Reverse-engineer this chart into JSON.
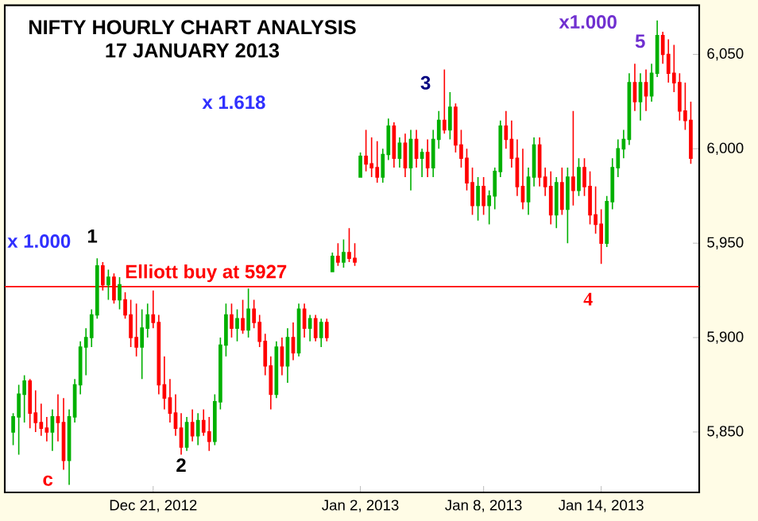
{
  "chart_data": {
    "type": "candlestick",
    "title": "NIFTY HOURLY CHART ANALYSIS",
    "subtitle": "17 JANUARY 2013",
    "categories": [
      null,
      null,
      null,
      null,
      null,
      null,
      null,
      null,
      null,
      null,
      null,
      null,
      null,
      null,
      null,
      null,
      null,
      null,
      null,
      null,
      null,
      null,
      null,
      null,
      null,
      "Dec 21, 2012",
      null,
      null,
      null,
      null,
      null,
      null,
      null,
      null,
      null,
      null,
      null,
      null,
      null,
      null,
      null,
      null,
      null,
      null,
      null,
      null,
      null,
      null,
      null,
      null,
      null,
      null,
      null,
      null,
      null,
      null,
      null,
      null,
      null,
      null,
      null,
      null,
      "Jan 2, 2013",
      null,
      null,
      null,
      null,
      null,
      null,
      null,
      null,
      null,
      null,
      null,
      null,
      null,
      null,
      null,
      null,
      null,
      null,
      null,
      null,
      null,
      "Jan 8, 2013",
      null,
      null,
      null,
      null,
      null,
      null,
      null,
      null,
      null,
      null,
      null,
      null,
      null,
      null,
      null,
      null,
      null,
      null,
      null,
      null,
      "Jan 14, 2013",
      null,
      null,
      null,
      null,
      null,
      null,
      null,
      null,
      null,
      null,
      null,
      null,
      null,
      null,
      null,
      null
    ],
    "ohlc": [
      [
        5850,
        5860,
        5843,
        5858
      ],
      [
        5858,
        5875,
        5838,
        5870
      ],
      [
        5870,
        5880,
        5855,
        5877
      ],
      [
        5877,
        5878,
        5852,
        5860
      ],
      [
        5860,
        5872,
        5850,
        5855
      ],
      [
        5855,
        5865,
        5848,
        5852
      ],
      [
        5852,
        5858,
        5845,
        5850
      ],
      [
        5850,
        5862,
        5840,
        5858
      ],
      [
        5858,
        5870,
        5845,
        5855
      ],
      [
        5855,
        5868,
        5830,
        5835
      ],
      [
        5835,
        5862,
        5822,
        5858
      ],
      [
        5858,
        5878,
        5855,
        5875
      ],
      [
        5875,
        5898,
        5870,
        5895
      ],
      [
        5895,
        5905,
        5880,
        5900
      ],
      [
        5900,
        5915,
        5895,
        5912
      ],
      [
        5912,
        5942,
        5910,
        5938
      ],
      [
        5938,
        5940,
        5925,
        5928
      ],
      [
        5928,
        5936,
        5920,
        5932
      ],
      [
        5932,
        5934,
        5918,
        5920
      ],
      [
        5920,
        5932,
        5915,
        5928
      ],
      [
        5920,
        5924,
        5910,
        5912
      ],
      [
        5912,
        5920,
        5895,
        5900
      ],
      [
        5900,
        5918,
        5890,
        5895
      ],
      [
        5895,
        5915,
        5878,
        5905
      ],
      [
        5905,
        5918,
        5900,
        5912
      ],
      [
        5912,
        5925,
        5905,
        5908
      ],
      [
        5908,
        5912,
        5870,
        5875
      ],
      [
        5875,
        5890,
        5862,
        5868
      ],
      [
        5868,
        5878,
        5855,
        5860
      ],
      [
        5860,
        5870,
        5848,
        5852
      ],
      [
        5852,
        5860,
        5838,
        5842
      ],
      [
        5842,
        5858,
        5840,
        5855
      ],
      [
        5855,
        5862,
        5845,
        5848
      ],
      [
        5848,
        5860,
        5843,
        5856
      ],
      [
        5856,
        5862,
        5848,
        5850
      ],
      [
        5850,
        5858,
        5840,
        5845
      ],
      [
        5845,
        5870,
        5843,
        5866
      ],
      [
        5866,
        5900,
        5862,
        5896
      ],
      [
        5896,
        5918,
        5890,
        5912
      ],
      [
        5912,
        5918,
        5900,
        5905
      ],
      [
        5905,
        5915,
        5898,
        5910
      ],
      [
        5910,
        5920,
        5902,
        5904
      ],
      [
        5904,
        5926,
        5900,
        5915
      ],
      [
        5915,
        5920,
        5905,
        5908
      ],
      [
        5908,
        5912,
        5895,
        5898
      ],
      [
        5898,
        5902,
        5880,
        5885
      ],
      [
        5885,
        5890,
        5862,
        5870
      ],
      [
        5870,
        5898,
        5868,
        5895
      ],
      [
        5895,
        5900,
        5880,
        5885
      ],
      [
        5885,
        5905,
        5876,
        5900
      ],
      [
        5900,
        5908,
        5888,
        5892
      ],
      [
        5892,
        5918,
        5890,
        5915
      ],
      [
        5915,
        5918,
        5900,
        5905
      ],
      [
        5905,
        5912,
        5898,
        5910
      ],
      [
        5910,
        5912,
        5898,
        5900
      ],
      [
        5900,
        5910,
        5895,
        5908
      ],
      [
        5908,
        5910,
        5898,
        5900
      ],
      [
        5935,
        5945,
        5935,
        5943
      ],
      [
        5943,
        5950,
        5938,
        5940
      ],
      [
        5940,
        5952,
        5937,
        5945
      ],
      [
        5945,
        5958,
        5940,
        5942
      ],
      [
        5942,
        5950,
        5938,
        5940
      ],
      [
        5985,
        5998,
        5985,
        5996
      ],
      [
        5996,
        6010,
        5988,
        5992
      ],
      [
        5992,
        6006,
        5985,
        5990
      ],
      [
        5990,
        6004,
        5982,
        5985
      ],
      [
        5985,
        6000,
        5982,
        5997
      ],
      [
        5997,
        6016,
        5994,
        6012
      ],
      [
        6012,
        6014,
        5990,
        5995
      ],
      [
        5995,
        6006,
        5990,
        6003
      ],
      [
        6003,
        6008,
        5985,
        5990
      ],
      [
        5990,
        6010,
        5978,
        6005
      ],
      [
        6005,
        6010,
        5990,
        5995
      ],
      [
        5995,
        6000,
        5985,
        5998
      ],
      [
        5998,
        6005,
        5985,
        5990
      ],
      [
        5990,
        6010,
        5985,
        6005
      ],
      [
        6005,
        6020,
        6000,
        6015
      ],
      [
        6015,
        6042,
        6008,
        6010
      ],
      [
        6010,
        6030,
        6005,
        6022
      ],
      [
        6022,
        6024,
        5998,
        6002
      ],
      [
        6002,
        6010,
        5990,
        5995
      ],
      [
        5995,
        6000,
        5978,
        5982
      ],
      [
        5982,
        5990,
        5965,
        5970
      ],
      [
        5970,
        5985,
        5962,
        5980
      ],
      [
        5980,
        5985,
        5965,
        5970
      ],
      [
        5970,
        5978,
        5960,
        5975
      ],
      [
        5975,
        5990,
        5968,
        5988
      ],
      [
        5988,
        6015,
        5985,
        6012
      ],
      [
        6012,
        6020,
        6000,
        6005
      ],
      [
        6005,
        6015,
        5990,
        5995
      ],
      [
        5995,
        6005,
        5975,
        5980
      ],
      [
        5980,
        6000,
        5968,
        5972
      ],
      [
        5972,
        5990,
        5965,
        5985
      ],
      [
        5985,
        6006,
        5980,
        6002
      ],
      [
        6002,
        6006,
        5980,
        5985
      ],
      [
        5985,
        5990,
        5975,
        5980
      ],
      [
        5980,
        5988,
        5960,
        5965
      ],
      [
        5965,
        5985,
        5958,
        5982
      ],
      [
        5982,
        5990,
        5965,
        5968
      ],
      [
        5968,
        5990,
        5950,
        5985
      ],
      [
        5985,
        6020,
        5970,
        5978
      ],
      [
        5978,
        5995,
        5975,
        5990
      ],
      [
        5990,
        5995,
        5975,
        5980
      ],
      [
        5980,
        5988,
        5960,
        5965
      ],
      [
        5965,
        5980,
        5955,
        5960
      ],
      [
        5960,
        5968,
        5939,
        5950
      ],
      [
        5950,
        5975,
        5948,
        5972
      ],
      [
        5972,
        5995,
        5968,
        5990
      ],
      [
        5990,
        6005,
        5985,
        6000
      ],
      [
        6000,
        6010,
        5995,
        6005
      ],
      [
        6005,
        6040,
        6002,
        6035
      ],
      [
        6035,
        6045,
        6020,
        6025
      ],
      [
        6025,
        6040,
        6015,
        6035
      ],
      [
        6035,
        6042,
        6020,
        6028
      ],
      [
        6028,
        6045,
        6025,
        6040
      ],
      [
        6040,
        6068,
        6038,
        6060
      ],
      [
        6060,
        6062,
        6045,
        6050
      ],
      [
        6050,
        6058,
        6035,
        6040
      ],
      [
        6040,
        6055,
        6030,
        6035
      ],
      [
        6035,
        6040,
        6015,
        6020
      ],
      [
        6020,
        6035,
        6010,
        6015
      ],
      [
        6015,
        6025,
        5992,
        5995
      ]
    ],
    "colors": [
      "#00b000",
      "#00b000",
      "#00b000",
      "#ff0000",
      "#ff0000",
      "#ff0000",
      "#ff0000",
      "#00b000",
      "#ff0000",
      "#ff0000",
      "#00b000",
      "#00b000",
      "#00b000",
      "#00b000",
      "#00b000",
      "#00b000",
      "#ff0000",
      "#00b000",
      "#ff0000",
      "#00b000",
      "#ff0000",
      "#ff0000",
      "#ff0000",
      "#00b000",
      "#00b000",
      "#ff0000",
      "#ff0000",
      "#ff0000",
      "#ff0000",
      "#ff0000",
      "#ff0000",
      "#00b000",
      "#ff0000",
      "#00b000",
      "#ff0000",
      "#ff0000",
      "#00b000",
      "#00b000",
      "#00b000",
      "#ff0000",
      "#00b000",
      "#ff0000",
      "#00b000",
      "#ff0000",
      "#ff0000",
      "#ff0000",
      "#ff0000",
      "#00b000",
      "#ff0000",
      "#00b000",
      "#ff0000",
      "#00b000",
      "#ff0000",
      "#00b000",
      "#ff0000",
      "#00b000",
      "#ff0000",
      "#00b000",
      "#ff0000",
      "#00b000",
      "#ff0000",
      "#ff0000",
      "#00b000",
      "#ff0000",
      "#ff0000",
      "#ff0000",
      "#00b000",
      "#00b000",
      "#ff0000",
      "#00b000",
      "#ff0000",
      "#00b000",
      "#ff0000",
      "#00b000",
      "#ff0000",
      "#00b000",
      "#00b000",
      "#ff0000",
      "#00b000",
      "#ff0000",
      "#ff0000",
      "#ff0000",
      "#ff0000",
      "#00b000",
      "#ff0000",
      "#00b000",
      "#00b000",
      "#00b000",
      "#ff0000",
      "#ff0000",
      "#ff0000",
      "#ff0000",
      "#00b000",
      "#00b000",
      "#ff0000",
      "#ff0000",
      "#ff0000",
      "#00b000",
      "#ff0000",
      "#00b000",
      "#ff0000",
      "#00b000",
      "#ff0000",
      "#ff0000",
      "#ff0000",
      "#ff0000",
      "#00b000",
      "#00b000",
      "#00b000",
      "#00b000",
      "#00b000",
      "#ff0000",
      "#00b000",
      "#ff0000",
      "#00b000",
      "#00b000",
      "#ff0000",
      "#ff0000",
      "#ff0000",
      "#ff0000",
      "#ff0000",
      "#ff0000"
    ],
    "ylim": [
      5818,
      6076
    ],
    "yticks": [
      {
        "value": 5850,
        "label": "5,850"
      },
      {
        "value": 5900,
        "label": "5,900"
      },
      {
        "value": 5950,
        "label": "5,950"
      },
      {
        "value": 6000,
        "label": "6,000"
      },
      {
        "value": 6050,
        "label": "6,050"
      }
    ],
    "ref_lines": [
      {
        "axis": "y",
        "value": 5927,
        "label": "Elliott buy at 5927",
        "color": "#ff0000"
      }
    ],
    "annotations": [
      "x 1.618",
      "x 1.000",
      "x1.000",
      "1",
      "2",
      "3",
      "4",
      "5",
      "c"
    ]
  }
}
